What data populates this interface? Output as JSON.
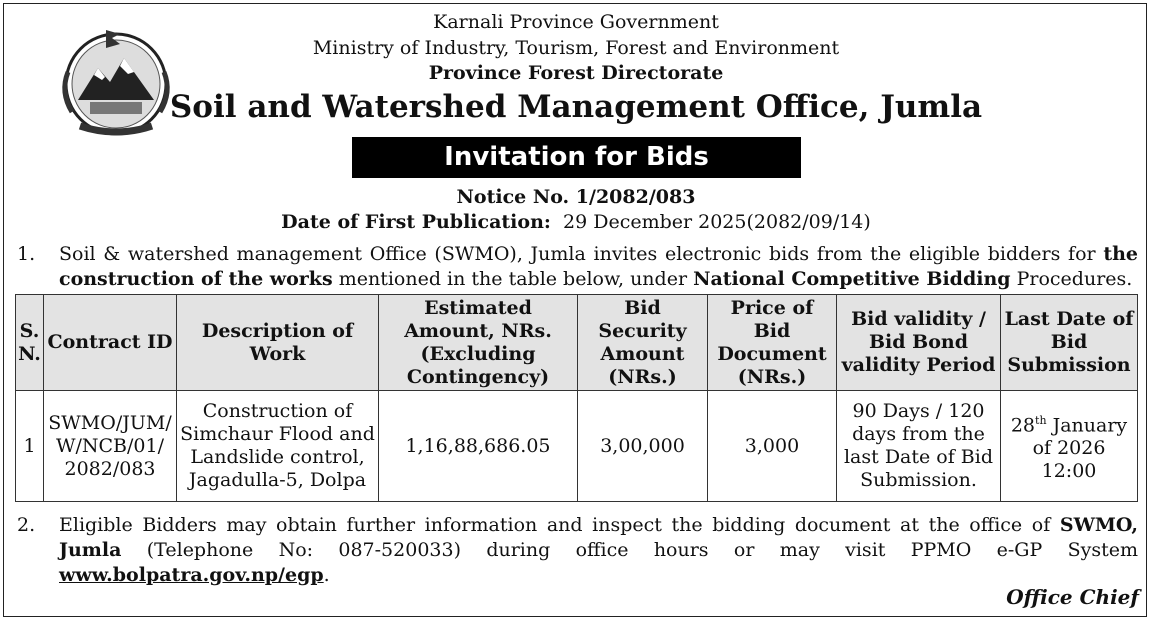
{
  "header": {
    "line1": "Karnali Province Government",
    "line2": "Ministry of Industry, Tourism, Forest and Environment",
    "line3": "Province Forest Directorate",
    "office": "Soil and Watershed Management Office, Jumla"
  },
  "banner": "Invitation for Bids",
  "notice": "Notice No. 1/2082/083",
  "publication": {
    "label": "Date of First Publication:",
    "value": "29 December 2025(2082/09/14)"
  },
  "item1": {
    "num": "1.",
    "t1": "Soil & watershed management Office (SWMO), Jumla invites electronic bids from the eligible bidders for ",
    "b1": "the construction of the works",
    "t2": " mentioned in the table below, under ",
    "b2": "National Competitive Bidding",
    "t3": " Procedures."
  },
  "table": {
    "headers": [
      "S. N.",
      "Contract ID",
      "Description of Work",
      "Estimated Amount, NRs. (Excluding Contingency)",
      "Bid Security Amount (NRs.)",
      "Price of Bid Document (NRs.)",
      "Bid validity / Bid Bond validity Period",
      "Last Date of Bid Submission"
    ],
    "row": {
      "sn": "1",
      "contract_id": "SWMO/JUM/ W/NCB/01/ 2082/083",
      "description": "Construction of Simchaur Flood and Landslide control, Jagadulla-5, Dolpa",
      "estimated_amount": "1,16,88,686.05",
      "bid_security": "3,00,000",
      "doc_price": "3,000",
      "validity": "90 Days / 120 days from the last Date of Bid Submission.",
      "last_date_day": "28",
      "last_date_sup": "th",
      "last_date_rest": " January of 2026 12:00"
    }
  },
  "item2": {
    "num": "2.",
    "t1": "Eligible Bidders may obtain further information and inspect the bidding document at the office of ",
    "b1": "SWMO, Jumla",
    "t2": " (Telephone No:  087-520033) during office hours or may visit PPMO e-GP System ",
    "link": "www.bolpatra.gov.np/egp",
    "t3": "."
  },
  "signature": "Office Chief",
  "emblem_text": "प्रदेश सरकार कर्णाली प्रदेश"
}
